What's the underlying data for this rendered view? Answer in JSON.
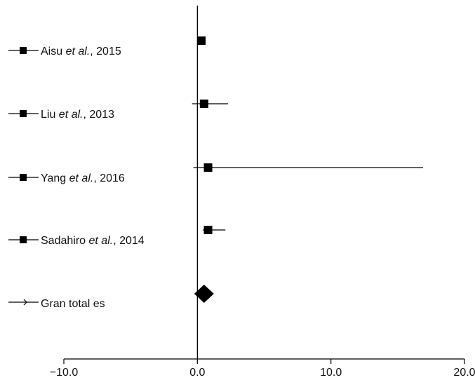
{
  "chart_data": {
    "type": "forest",
    "title": "",
    "xlabel": "",
    "ylabel": "",
    "xlim": [
      -10,
      20
    ],
    "xticks": [
      {
        "value": -10,
        "label": "−10.0"
      },
      {
        "value": 0,
        "label": "0.0"
      },
      {
        "value": 10,
        "label": "10.0"
      },
      {
        "value": 20,
        "label": "20.0"
      }
    ],
    "grid": false,
    "reference_line": 0,
    "studies": [
      {
        "prefix": "Aisu ",
        "italic": "et al.",
        "suffix": ", 2015",
        "estimate": 0.3,
        "ci": [
          0.1,
          0.3
        ]
      },
      {
        "prefix": "Liu ",
        "italic": "et al.",
        "suffix": ", 2013",
        "estimate": 0.5,
        "ci": [
          -0.4,
          2.3
        ]
      },
      {
        "prefix": "Yang ",
        "italic": "et al.",
        "suffix": ", 2016",
        "estimate": 0.8,
        "ci": [
          -0.3,
          16.9
        ]
      },
      {
        "prefix": "Sadahiro ",
        "italic": "et al.",
        "suffix": ", 2014",
        "estimate": 0.8,
        "ci": [
          0.4,
          2.1
        ]
      }
    ],
    "total": {
      "label": "Gran total es",
      "estimate": 0.5
    }
  }
}
